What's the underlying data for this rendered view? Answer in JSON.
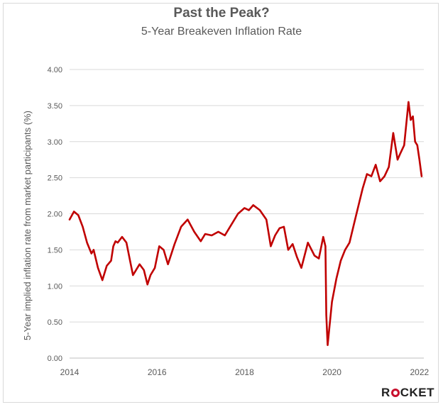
{
  "chart_data": {
    "type": "line",
    "title": "Past the Peak?",
    "subtitle": "5-Year Breakeven Inflation Rate",
    "xlabel": "",
    "ylabel": "5-Year implied inflation rate from market participants (%)",
    "xlim": [
      2014,
      2022.1
    ],
    "ylim": [
      0,
      4
    ],
    "x_ticks": [
      "2014",
      "2016",
      "2018",
      "2020",
      "2022"
    ],
    "y_ticks": [
      "0.00",
      "0.50",
      "1.00",
      "1.50",
      "2.00",
      "2.50",
      "3.00",
      "3.50",
      "4.00"
    ],
    "grid": "horizontal",
    "legend": "none",
    "line_color": "#c00000",
    "series": [
      {
        "x": [
          2014.0,
          2014.1,
          2014.2,
          2014.3,
          2014.4,
          2014.5,
          2014.55,
          2014.65,
          2014.75,
          2014.85,
          2014.95,
          2015.0,
          2015.05,
          2015.1,
          2015.2,
          2015.3,
          2015.4,
          2015.45,
          2015.5,
          2015.6,
          2015.7,
          2015.78,
          2015.85,
          2015.95,
          2016.05,
          2016.15,
          2016.25,
          2016.4,
          2016.55,
          2016.7,
          2016.85,
          2017.0,
          2017.1,
          2017.25,
          2017.4,
          2017.55,
          2017.7,
          2017.85,
          2018.0,
          2018.1,
          2018.2,
          2018.35,
          2018.5,
          2018.6,
          2018.7,
          2018.8,
          2018.9,
          2019.0,
          2019.1,
          2019.2,
          2019.3,
          2019.45,
          2019.6,
          2019.7,
          2019.8,
          2019.85,
          2019.87,
          2019.9,
          2020.0,
          2020.1,
          2020.2,
          2020.3,
          2020.4,
          2020.5,
          2020.6,
          2020.7,
          2020.8,
          2020.9,
          2021.0,
          2021.1,
          2021.2,
          2021.3,
          2021.4,
          2021.5,
          2021.55,
          2021.65,
          2021.75,
          2021.8,
          2021.85,
          2021.9,
          2021.95,
          2022.0,
          2022.05
        ],
        "y": [
          1.92,
          2.03,
          1.98,
          1.82,
          1.6,
          1.45,
          1.5,
          1.25,
          1.08,
          1.28,
          1.35,
          1.55,
          1.62,
          1.6,
          1.68,
          1.6,
          1.3,
          1.15,
          1.2,
          1.3,
          1.22,
          1.02,
          1.15,
          1.25,
          1.55,
          1.5,
          1.3,
          1.58,
          1.82,
          1.92,
          1.75,
          1.62,
          1.72,
          1.7,
          1.75,
          1.7,
          1.85,
          2.0,
          2.08,
          2.05,
          2.12,
          2.05,
          1.92,
          1.55,
          1.7,
          1.8,
          1.82,
          1.5,
          1.58,
          1.4,
          1.25,
          1.6,
          1.42,
          1.38,
          1.68,
          1.55,
          0.6,
          0.18,
          0.78,
          1.1,
          1.35,
          1.5,
          1.6,
          1.85,
          2.1,
          2.35,
          2.55,
          2.52,
          2.68,
          2.45,
          2.52,
          2.65,
          3.12,
          2.75,
          2.82,
          2.95,
          3.55,
          3.3,
          3.35,
          3.0,
          2.95,
          2.75,
          2.52
        ]
      }
    ]
  },
  "brand": {
    "logo_text_left": "R",
    "logo_text_right": "CKET"
  }
}
